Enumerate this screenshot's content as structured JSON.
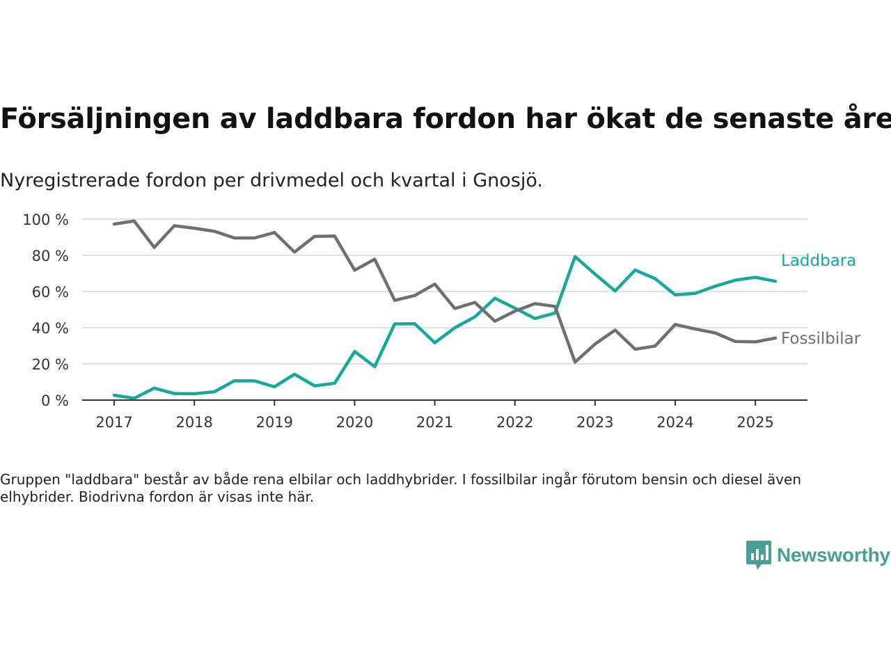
{
  "title": "Försäljningen av laddbara fordon har ökat de senaste åren",
  "subtitle": "Nyregistrerade fordon per drivmedel och kvartal i Gnosjö.",
  "note": "Gruppen \"laddbara\" består av både rena elbilar och laddhybrider. I fossilbilar ingår förutom bensin och diesel även elhybrider. Biodrivna fordon är visas inte här.",
  "brand": {
    "name": "Newsworthy",
    "icon": "newsworthy-logo-icon"
  },
  "colors": {
    "laddbara": "#14a99a",
    "fossil": "#6f6f73",
    "grid": "#d9d9d9",
    "axis": "#333333",
    "brand": "#4a9e94"
  },
  "chart_data": {
    "type": "line",
    "title": "Försäljningen av laddbara fordon har ökat de senaste åren",
    "subtitle": "Nyregistrerade fordon per drivmedel och kvartal i Gnosjö.",
    "xlabel": "",
    "ylabel": "",
    "y_ticks": [
      0,
      20,
      40,
      60,
      80,
      100
    ],
    "y_tick_labels": [
      "0 %",
      "20 %",
      "40 %",
      "60 %",
      "80 %",
      "100 %"
    ],
    "ylim": [
      0,
      100
    ],
    "x_ticks": [
      2017,
      2018,
      2019,
      2020,
      2021,
      2022,
      2023,
      2024,
      2025
    ],
    "x_tick_labels": [
      "2017",
      "2018",
      "2019",
      "2020",
      "2021",
      "2022",
      "2023",
      "2024",
      "2025"
    ],
    "xlim": [
      2016.6,
      2025.65
    ],
    "grid": true,
    "legend": "inline labels at right end of lines",
    "x": [
      "2017 Q1",
      "2017 Q2",
      "2017 Q3",
      "2017 Q4",
      "2018 Q1",
      "2018 Q2",
      "2018 Q3",
      "2018 Q4",
      "2019 Q1",
      "2019 Q2",
      "2019 Q3",
      "2019 Q4",
      "2020 Q1",
      "2020 Q2",
      "2020 Q3",
      "2020 Q4",
      "2021 Q1",
      "2021 Q2",
      "2021 Q3",
      "2021 Q4",
      "2022 Q1",
      "2022 Q2",
      "2022 Q3",
      "2022 Q4",
      "2023 Q1",
      "2023 Q2",
      "2023 Q3",
      "2023 Q4",
      "2024 Q1",
      "2024 Q2",
      "2024 Q3",
      "2024 Q4",
      "2025 Q1",
      "2025 Q2"
    ],
    "series": [
      {
        "name": "Laddbara",
        "color": "#14a99a",
        "values": [
          2.7,
          1.0,
          6.6,
          3.6,
          3.5,
          4.6,
          10.7,
          10.6,
          7.4,
          14.3,
          7.9,
          9.3,
          26.9,
          18.5,
          42.1,
          42.2,
          31.7,
          40.0,
          46.0,
          56.3,
          50.8,
          45.1,
          48.1,
          79.3,
          69.6,
          60.3,
          71.9,
          67.1,
          58.2,
          59.0,
          63.0,
          66.3,
          67.9,
          65.7
        ]
      },
      {
        "name": "Fossilbilar",
        "color": "#6f6f73",
        "values": [
          97.3,
          99.0,
          84.4,
          96.4,
          95.0,
          93.3,
          89.6,
          89.6,
          92.6,
          81.8,
          90.5,
          90.7,
          71.8,
          77.9,
          55.1,
          57.8,
          64.1,
          50.6,
          54.0,
          43.6,
          49.2,
          53.3,
          51.8,
          21.0,
          31.0,
          38.7,
          28.1,
          29.9,
          41.8,
          39.3,
          37.1,
          32.4,
          32.2,
          34.3
        ]
      }
    ]
  }
}
